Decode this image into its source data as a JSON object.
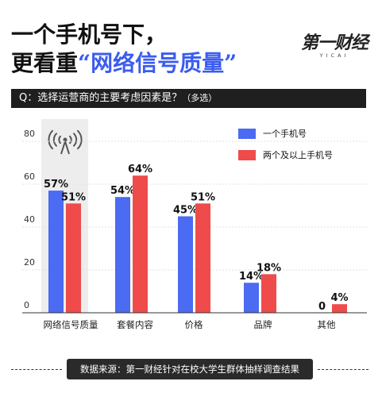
{
  "header": {
    "title_line1": "一个手机号下，",
    "title_line2_prefix": "更看重",
    "title_line2_highlight": "“网络信号质量”"
  },
  "brand": {
    "logo": "第一财经",
    "sub": "YICAI"
  },
  "question": {
    "text": "Q：选择运营商的主要考虑因素是？",
    "note": "（多选）"
  },
  "source": "数据来源：第一财经针对在校大学生群体抽样调查结果",
  "colors": {
    "series1": "#4a6bf2",
    "series2": "#ef4b4b",
    "highlight_bg": "#ededed",
    "title_accent": "#3a5cf0"
  },
  "highlight_icon": "wifi-signal-tower-icon",
  "chart_data": {
    "type": "bar",
    "categories": [
      "网络信号质量",
      "套餐内容",
      "价格",
      "品牌",
      "其他"
    ],
    "series": [
      {
        "name": "一个手机号",
        "values": [
          57,
          54,
          45,
          14,
          0
        ],
        "labels": [
          "57%",
          "54%",
          "45%",
          "14%",
          "0"
        ]
      },
      {
        "name": "两个及以上手机号",
        "values": [
          51,
          64,
          51,
          18,
          4
        ],
        "labels": [
          "51%",
          "64%",
          "51%",
          "18%",
          "4%"
        ]
      }
    ],
    "yticks": [
      "0",
      "20",
      "40",
      "60",
      "80"
    ],
    "ylim": [
      0,
      80
    ],
    "legend_position": "top-right",
    "highlighted_category": "网络信号质量"
  }
}
